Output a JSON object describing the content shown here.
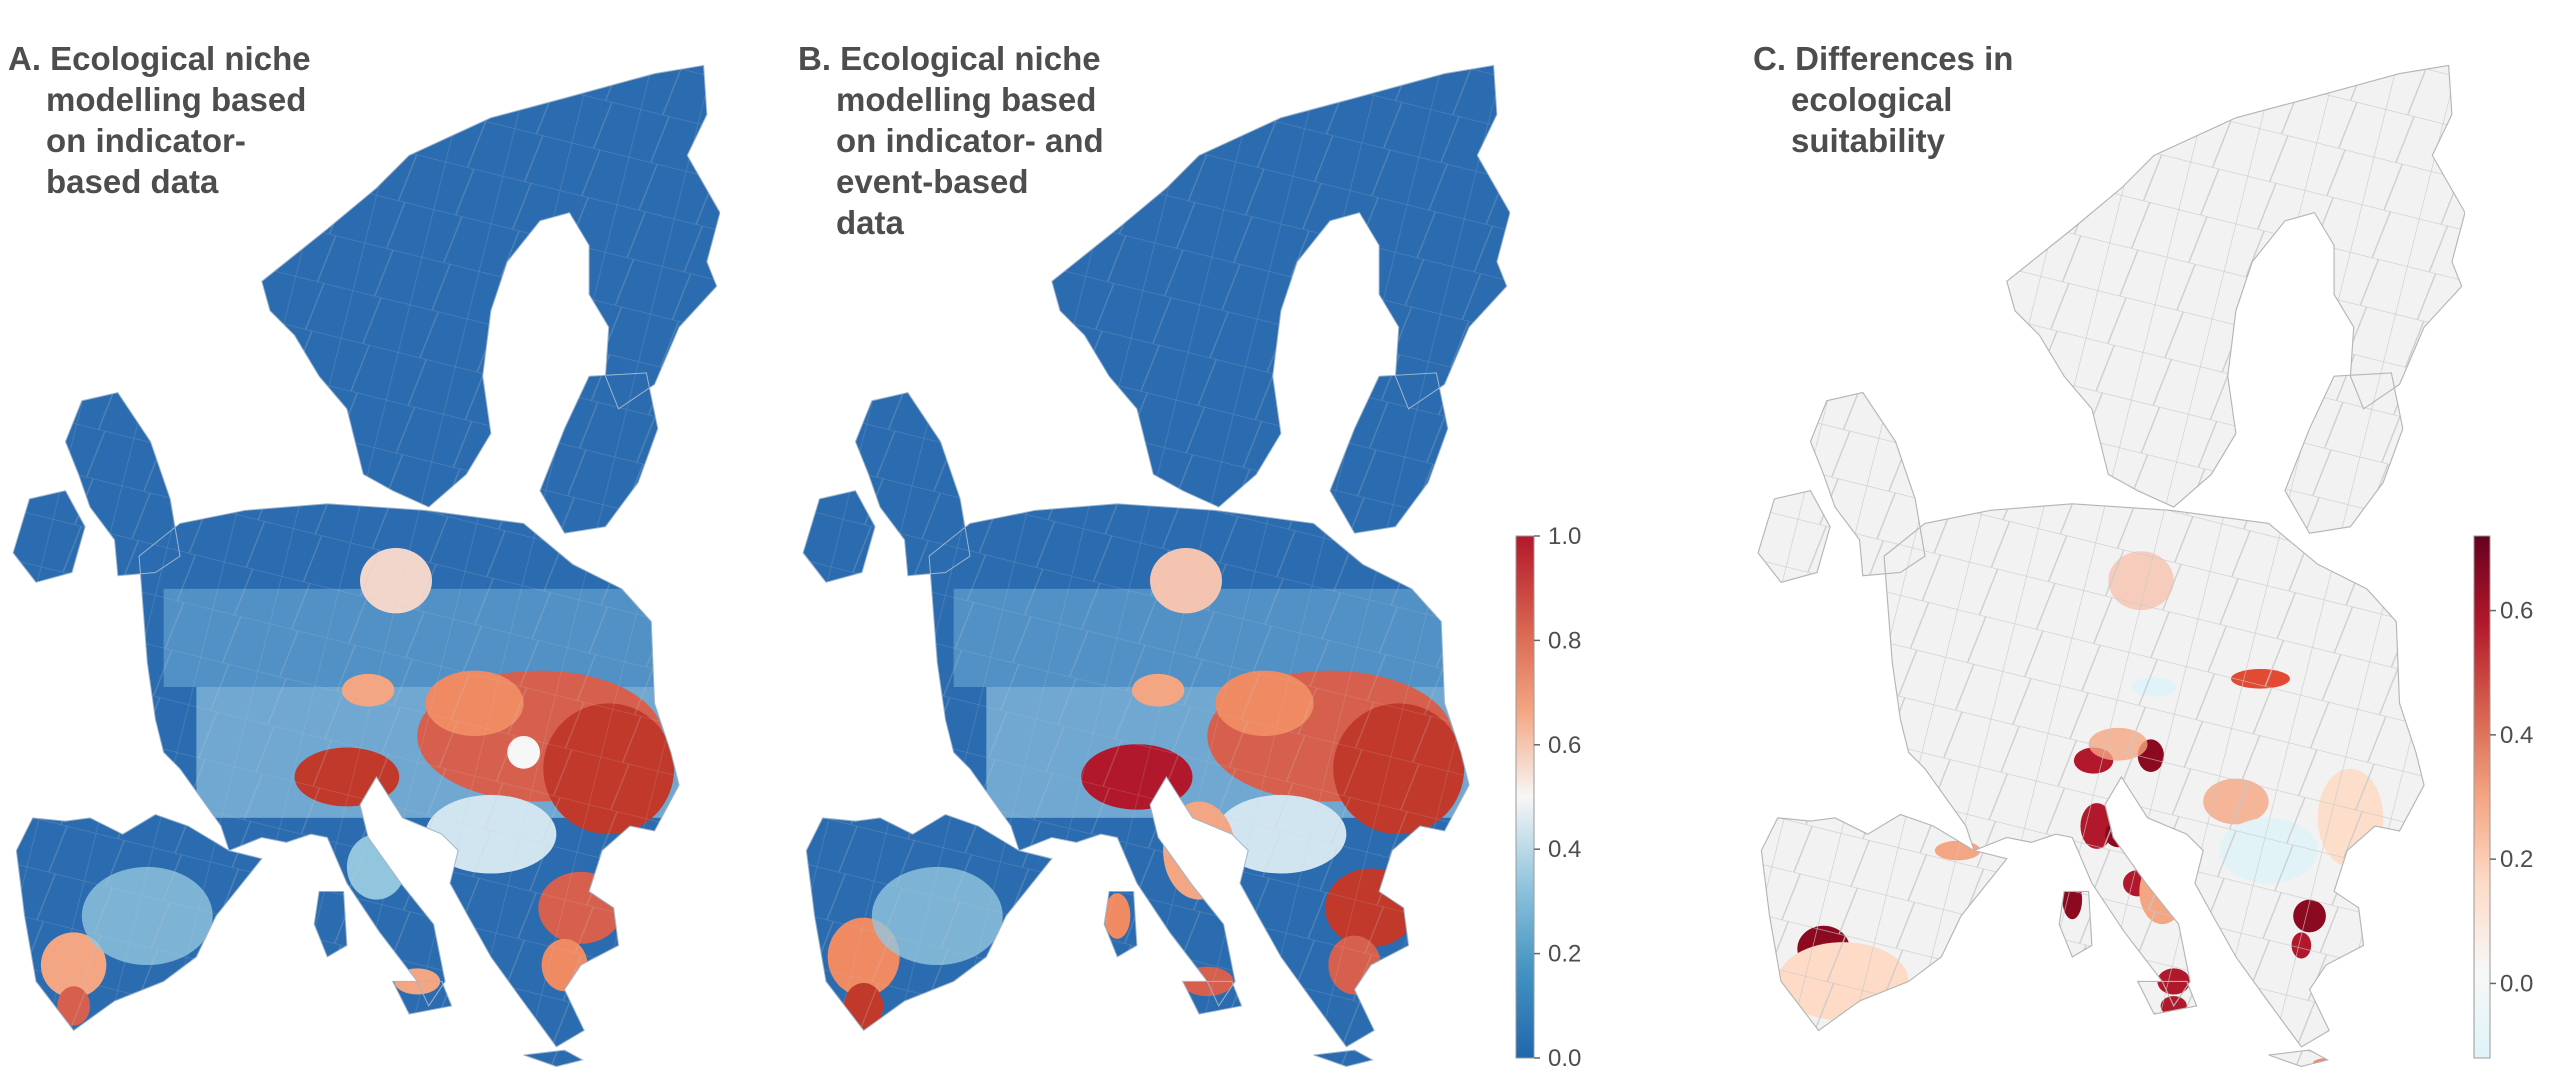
{
  "panels": [
    {
      "id": "a",
      "title_lines": [
        "A. Ecological niche",
        "modelling based",
        "on indicator-",
        "based data"
      ]
    },
    {
      "id": "b",
      "title_lines": [
        "B. Ecological niche",
        "modelling based",
        "on indicator- and",
        "event-based",
        "data"
      ]
    },
    {
      "id": "c",
      "title_lines": [
        "C. Differences in",
        "ecological",
        "suitability"
      ]
    }
  ],
  "legends": {
    "suitability": {
      "ticks": [
        "1.0",
        "0.8",
        "0.6",
        "0.4",
        "0.2",
        "0.0"
      ],
      "min": 0.0,
      "max": 1.0,
      "colors": [
        "#2166ac",
        "#4393c3",
        "#92c5de",
        "#f7f7f7",
        "#f4a582",
        "#d6604d",
        "#b2182b"
      ]
    },
    "difference": {
      "ticks": [
        "0.6",
        "0.4",
        "0.2",
        "0.0"
      ],
      "min": -0.12,
      "max": 0.72,
      "colors": [
        "#e0f3f8",
        "#f7f7f7",
        "#fddbc7",
        "#f4a582",
        "#d6604d",
        "#b2182b",
        "#67001f"
      ]
    }
  },
  "colors": {
    "low": "#2166ac",
    "mid": "#f7f7f7",
    "high": "#b2182b",
    "neutral_fill": "#f2f2f2",
    "border": "#c8c8c8",
    "title_text": "#4d4d4d"
  }
}
